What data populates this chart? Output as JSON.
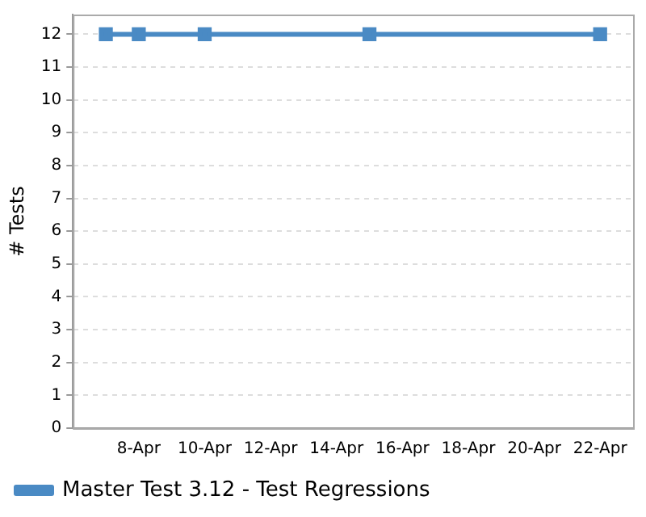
{
  "chart_data": {
    "type": "line",
    "ylabel": "# Tests",
    "x": [
      "--04-07",
      "--04-08",
      "--04-10",
      "--04-15",
      "--04-22"
    ],
    "series": [
      {
        "name": "Master Test 3.12 - Test Regressions",
        "color": "#4a8ac4",
        "values": [
          12,
          12,
          12,
          12,
          12
        ]
      }
    ],
    "xlim": [
      "--04-06",
      "--04-23"
    ],
    "xticks": [
      {
        "value": "--04-08",
        "label": "8-Apr"
      },
      {
        "value": "--04-10",
        "label": "10-Apr"
      },
      {
        "value": "--04-12",
        "label": "12-Apr"
      },
      {
        "value": "--04-14",
        "label": "14-Apr"
      },
      {
        "value": "--04-16",
        "label": "16-Apr"
      },
      {
        "value": "--04-18",
        "label": "18-Apr"
      },
      {
        "value": "--04-20",
        "label": "20-Apr"
      },
      {
        "value": "--04-22",
        "label": "22-Apr"
      }
    ],
    "ylim": [
      0,
      12.6
    ],
    "yticks": [
      0,
      1,
      2,
      3,
      4,
      5,
      6,
      7,
      8,
      9,
      10,
      11,
      12
    ],
    "grid": "y",
    "legend": "bottom",
    "marker": "square",
    "line_style": "solid"
  }
}
